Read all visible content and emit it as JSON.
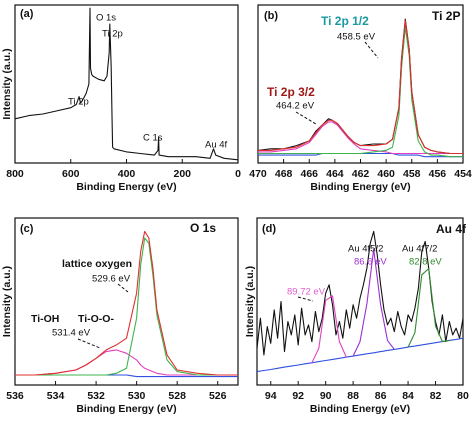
{
  "chart_data": [
    {
      "type": "line",
      "label": "(a)",
      "x_label": "Binding Energy (eV)",
      "y_label": "Intensity (a.u.)",
      "xlim": [
        800,
        0
      ],
      "xticks": [
        800,
        600,
        400,
        200,
        0
      ],
      "ylim": [
        0,
        100
      ],
      "x": [
        800,
        750,
        700,
        650,
        600,
        580,
        570,
        565,
        560,
        545,
        535,
        531,
        529,
        525,
        520,
        500,
        480,
        470,
        462,
        460,
        458,
        455,
        452,
        450,
        445,
        400,
        350,
        300,
        287,
        285,
        283,
        250,
        200,
        150,
        100,
        88,
        84,
        80,
        50,
        0
      ],
      "series": [
        {
          "color": "#111111",
          "values": [
            28,
            30,
            31,
            33,
            35,
            37,
            42,
            38,
            39,
            44,
            50,
            98,
            60,
            56,
            55,
            53,
            52,
            55,
            70,
            88,
            78,
            60,
            30,
            10,
            9,
            7,
            6,
            5,
            8,
            16,
            5,
            4,
            4,
            4,
            3,
            9,
            7,
            5,
            3,
            2
          ]
        }
      ],
      "annotations": [
        {
          "text": "O 1s"
        },
        {
          "text": "Ti 2p"
        },
        {
          "text": "Ti 2p"
        },
        {
          "text": "C 1s"
        },
        {
          "text": "Au 4f"
        }
      ]
    },
    {
      "type": "line",
      "label": "(b)",
      "title": "Ti 2P",
      "x_label": "Binding Energy (eV)",
      "xlim": [
        470,
        454
      ],
      "xticks": [
        470,
        468,
        466,
        464,
        462,
        460,
        458,
        456,
        454
      ],
      "ylim": [
        0,
        100
      ],
      "x": [
        470,
        469,
        468,
        467,
        466,
        465.5,
        465,
        464.5,
        464.2,
        463.8,
        463,
        462.5,
        462,
        461,
        460,
        459.5,
        459,
        458.8,
        458.5,
        458.2,
        458,
        457.5,
        457,
        456.5,
        456,
        455,
        454
      ],
      "series": [
        {
          "color": "#3050e0",
          "values": [
            5,
            5,
            5,
            5,
            5,
            5,
            6,
            6,
            6,
            6,
            6,
            6,
            6,
            6,
            6,
            6,
            5,
            5,
            5,
            5,
            5,
            5,
            4,
            4,
            4,
            4,
            4
          ]
        },
        {
          "color": "#e040c0",
          "values": [
            7,
            7,
            8,
            9,
            13,
            18,
            23,
            26,
            26,
            24,
            16,
            12,
            9,
            8,
            7,
            6,
            6,
            6,
            6,
            6,
            6,
            6,
            6,
            6,
            6,
            6,
            6
          ]
        },
        {
          "color": "#3cb44b",
          "values": [
            6,
            6,
            6,
            6,
            6,
            6,
            6,
            6,
            6,
            6,
            6,
            6,
            6,
            7,
            8,
            10,
            30,
            60,
            86,
            68,
            40,
            14,
            7,
            5,
            5,
            4,
            4
          ]
        },
        {
          "color": "#111111",
          "values": [
            8,
            9,
            9,
            11,
            14,
            20,
            24,
            28,
            27,
            25,
            17,
            13,
            11,
            12,
            12,
            15,
            35,
            66,
            91,
            72,
            45,
            18,
            10,
            8,
            7,
            6,
            6
          ]
        },
        {
          "color": "#e0302e",
          "values": [
            8,
            8,
            9,
            10,
            14,
            19,
            24,
            27,
            27,
            25,
            17,
            13,
            11,
            11,
            12,
            15,
            35,
            65,
            90,
            72,
            45,
            18,
            10,
            8,
            7,
            6,
            6
          ]
        }
      ],
      "annotations": [
        {
          "text": "Ti 2p 1/2",
          "color": "#1a9aa0"
        },
        {
          "text": "458.5 eV"
        },
        {
          "text": "Ti 2p 3/2",
          "color": "#a01818"
        },
        {
          "text": "464.2 eV"
        }
      ]
    },
    {
      "type": "line",
      "label": "(c)",
      "title": "O 1s",
      "x_label": "Binding Energy (eV)",
      "y_label": "Intensity (a.u.)",
      "xlim": [
        536,
        525
      ],
      "xticks": [
        536,
        534,
        532,
        530,
        528,
        526
      ],
      "ylim": [
        0,
        100
      ],
      "x": [
        536,
        535,
        534,
        533,
        532.5,
        532,
        531.5,
        531,
        530.5,
        530,
        529.8,
        529.6,
        529.4,
        529.2,
        529,
        528.5,
        528,
        527,
        526,
        525
      ],
      "series": [
        {
          "color": "#3050e0",
          "values": [
            6,
            6,
            6,
            6,
            6,
            6,
            6,
            6,
            6,
            5,
            5,
            5,
            5,
            5,
            5,
            5,
            5,
            5,
            5,
            5
          ]
        },
        {
          "color": "#e040c0",
          "values": [
            6,
            6,
            7,
            9,
            12,
            16,
            20,
            21,
            19,
            15,
            12,
            10,
            9,
            8,
            7,
            6,
            6,
            6,
            6,
            6
          ]
        },
        {
          "color": "#3cb44b",
          "values": [
            6,
            6,
            6,
            6,
            6,
            6,
            6,
            7,
            10,
            40,
            72,
            88,
            85,
            66,
            42,
            15,
            8,
            6,
            6,
            6
          ]
        },
        {
          "color": "#e0302e",
          "values": [
            6,
            6,
            7,
            9,
            12,
            16,
            21,
            24,
            28,
            55,
            80,
            92,
            88,
            70,
            45,
            18,
            9,
            7,
            6,
            6
          ]
        }
      ],
      "annotations": [
        {
          "text": "lattice oxygen"
        },
        {
          "text": "529.6 eV"
        },
        {
          "text": "Ti-OH"
        },
        {
          "text": "Ti-O-O-"
        },
        {
          "text": "531.4 eV"
        }
      ]
    },
    {
      "type": "line",
      "label": "(d)",
      "title": "Au 4f",
      "x_label": "Binding Energy (eV)",
      "y_label": "Intensity (a.u.)",
      "xlim": [
        95,
        80
      ],
      "xticks": [
        94,
        92,
        90,
        88,
        86,
        84,
        82,
        80
      ],
      "ylim": [
        0,
        100
      ],
      "x": [
        95,
        94.75,
        94.5,
        94.25,
        94,
        93.75,
        93.5,
        93.25,
        93,
        92.75,
        92.5,
        92.25,
        92,
        91.75,
        91.5,
        91.25,
        91,
        90.75,
        90.5,
        90.25,
        90,
        89.75,
        89.5,
        89.25,
        89,
        88.75,
        88.5,
        88.25,
        88,
        87.75,
        87.5,
        87.25,
        87,
        86.75,
        86.5,
        86.25,
        86,
        85.75,
        85.5,
        85.25,
        85,
        84.75,
        84.5,
        84.25,
        84,
        83.75,
        83.5,
        83.25,
        83,
        82.75,
        82.5,
        82.25,
        82,
        81.75,
        81.5,
        81.25,
        81,
        80.75,
        80.5,
        80.25,
        80
      ],
      "series": [
        {
          "color": "#111111",
          "values": [
            22,
            40,
            18,
            35,
            25,
            45,
            28,
            50,
            20,
            38,
            30,
            42,
            24,
            46,
            30,
            36,
            26,
            44,
            32,
            40,
            55,
            60,
            48,
            30,
            38,
            28,
            45,
            34,
            48,
            40,
            52,
            60,
            70,
            85,
            92,
            78,
            60,
            45,
            36,
            40,
            32,
            44,
            35,
            30,
            42,
            38,
            46,
            58,
            80,
            86,
            70,
            50,
            38,
            30,
            42,
            26,
            38,
            30,
            34,
            28,
            40
          ]
        },
        {
          "color": "#3050e0",
          "x": [
            95,
            94.5,
            94,
            93.5,
            93,
            92.5,
            92,
            91.5,
            91,
            90.5,
            90,
            89.5,
            89,
            88.5,
            88,
            87.5,
            87,
            86.5,
            86,
            85.5,
            85,
            84.5,
            84,
            83.5,
            83,
            82.5,
            82,
            81.5,
            81,
            80.5,
            80
          ],
          "values": [
            8,
            8.7,
            9.3,
            10,
            10.7,
            11.3,
            12,
            12.7,
            13.3,
            14,
            14.7,
            15.3,
            16,
            16.7,
            17.3,
            18,
            18.7,
            19.3,
            20,
            20.7,
            21.3,
            22,
            22.7,
            23.3,
            24,
            24.7,
            25.3,
            26,
            26.7,
            27.3,
            28
          ]
        },
        {
          "color": "#e040c0",
          "x": [
            91,
            90.5,
            90,
            89.5,
            89,
            88.5
          ],
          "values": [
            13.3,
            22,
            50.7,
            53.3,
            26,
            16.7
          ]
        },
        {
          "color": "#9b30d0",
          "x": [
            88,
            87.5,
            87,
            86.5,
            86,
            85.5,
            85
          ],
          "values": [
            17.3,
            26,
            48.7,
            81.3,
            48,
            26.7,
            21.3
          ]
        },
        {
          "color": "#2e8b2e",
          "x": [
            84,
            83.5,
            83,
            82.5,
            82,
            81.5,
            81
          ],
          "values": [
            22.7,
            31.3,
            66,
            69.7,
            35.3,
            26,
            26.7
          ]
        }
      ],
      "annotations": [
        {
          "text": "Au 4f5/2"
        },
        {
          "text": "86.6 eV",
          "color": "#9b30d0"
        },
        {
          "text": "Au 4f7/2"
        },
        {
          "text": "82.8 eV",
          "color": "#2e8b2e"
        },
        {
          "text": "89.72 eV",
          "color": "#e060d0"
        }
      ]
    }
  ]
}
